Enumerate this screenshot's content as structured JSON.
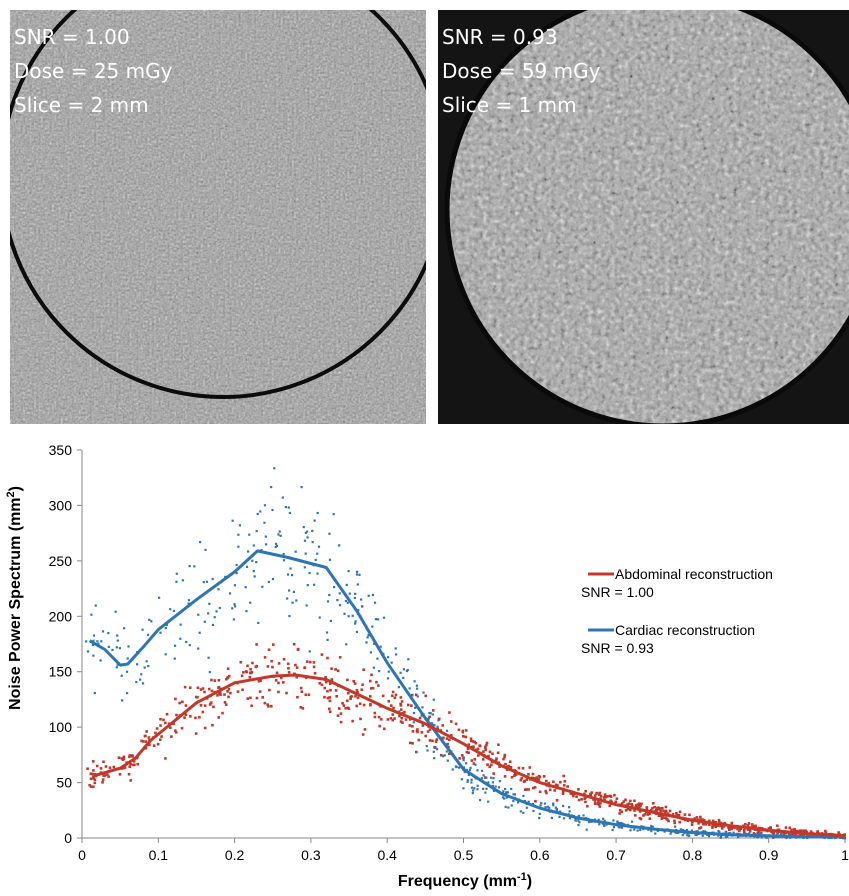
{
  "images": [
    {
      "snr": "SNR = 1.00",
      "dose": "Dose = 25 mGy",
      "slice": "Slice = 2 mm",
      "grain": "fine"
    },
    {
      "snr": "SNR = 0.93",
      "dose": "Dose = 59 mGy",
      "slice": "Slice = 1 mm",
      "grain": "coarse"
    }
  ],
  "chart_data": {
    "type": "scatter",
    "title": "",
    "xlabel": "Frequency (mm",
    "xlabel_sup": "-1",
    "xlabel_close": ")",
    "ylabel": "Noise Power Spectrum (mm",
    "ylabel_sup": "2",
    "ylabel_close": ")",
    "xlim": [
      0,
      1
    ],
    "ylim": [
      0,
      350
    ],
    "x_ticks": [
      "0",
      "0.1",
      "0.2",
      "0.3",
      "0.4",
      "0.5",
      "0.6",
      "0.7",
      "0.8",
      "0.9",
      "1"
    ],
    "y_ticks": [
      "0",
      "50",
      "100",
      "150",
      "200",
      "250",
      "300",
      "350"
    ],
    "grid": false,
    "legend_position": "right",
    "series": [
      {
        "name": "Abdominal reconstruction",
        "snr_label": "SNR = 1.00",
        "color": "#c0392b",
        "curve": [
          [
            0.01,
            58
          ],
          [
            0.02,
            57
          ],
          [
            0.05,
            63
          ],
          [
            0.07,
            72
          ],
          [
            0.09,
            88
          ],
          [
            0.12,
            105
          ],
          [
            0.15,
            122
          ],
          [
            0.2,
            140
          ],
          [
            0.25,
            146
          ],
          [
            0.28,
            147
          ],
          [
            0.32,
            143
          ],
          [
            0.36,
            130
          ],
          [
            0.4,
            117
          ],
          [
            0.45,
            103
          ],
          [
            0.5,
            85
          ],
          [
            0.55,
            65
          ],
          [
            0.6,
            50
          ],
          [
            0.65,
            40
          ],
          [
            0.7,
            30
          ],
          [
            0.75,
            23
          ],
          [
            0.8,
            16
          ],
          [
            0.85,
            11
          ],
          [
            0.9,
            7
          ],
          [
            0.95,
            4
          ],
          [
            1.0,
            2
          ]
        ]
      },
      {
        "name": "Cardiac reconstruction",
        "snr_label": "SNR = 0.93",
        "color": "#2e75b6",
        "curve": [
          [
            0.01,
            178
          ],
          [
            0.03,
            170
          ],
          [
            0.05,
            156
          ],
          [
            0.06,
            157
          ],
          [
            0.08,
            172
          ],
          [
            0.1,
            188
          ],
          [
            0.15,
            215
          ],
          [
            0.2,
            240
          ],
          [
            0.23,
            259
          ],
          [
            0.27,
            253
          ],
          [
            0.32,
            244
          ],
          [
            0.36,
            205
          ],
          [
            0.4,
            158
          ],
          [
            0.45,
            108
          ],
          [
            0.5,
            62
          ],
          [
            0.55,
            40
          ],
          [
            0.6,
            27
          ],
          [
            0.65,
            18
          ],
          [
            0.7,
            12
          ],
          [
            0.75,
            8
          ],
          [
            0.8,
            5
          ],
          [
            0.85,
            3
          ],
          [
            0.9,
            2
          ],
          [
            0.95,
            1
          ],
          [
            1.0,
            1
          ]
        ]
      }
    ]
  }
}
